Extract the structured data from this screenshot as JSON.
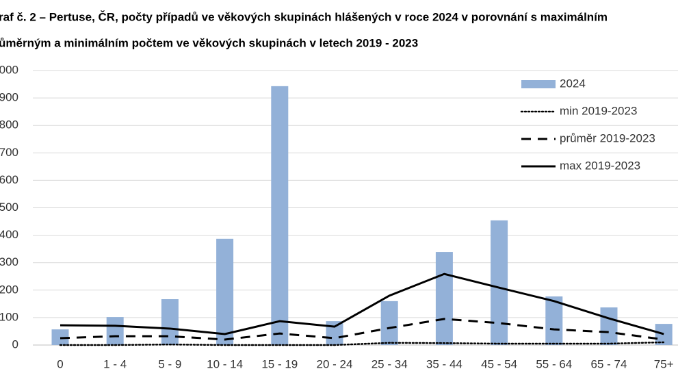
{
  "chart_data": {
    "type": "bar_line",
    "title": "raf č. 2 – Pertuse, ČR, počty případů ve věkových skupinách hlášených v roce 2024 v porovnání s maximálním",
    "subtitle": "ůměrným a minimálním počtem ve věkových skupinách v  letech 2019 - 2023",
    "categories": [
      "0",
      "1 - 4",
      "5 - 9",
      "10 - 14",
      "15 - 19",
      "20 - 24",
      "25 - 34",
      "35 - 44",
      "45 - 54",
      "55 - 64",
      "65 - 74",
      "75+"
    ],
    "series": [
      {
        "name": "2024",
        "kind": "bar",
        "color": "#93b1d8",
        "values": [
          57,
          102,
          167,
          387,
          943,
          87,
          160,
          339,
          454,
          177,
          137,
          77
        ]
      },
      {
        "name": "min 2019-2023",
        "kind": "line",
        "dash": "dotted",
        "color": "#000000",
        "values": [
          0,
          0,
          2,
          0,
          0,
          0,
          8,
          7,
          5,
          5,
          5,
          10
        ]
      },
      {
        "name": "průměr 2019-2023",
        "kind": "line",
        "dash": "dashed",
        "color": "#000000",
        "values": [
          25,
          32,
          32,
          20,
          42,
          25,
          62,
          95,
          80,
          57,
          47,
          20
        ]
      },
      {
        "name": "max 2019-2023",
        "kind": "line",
        "dash": "solid",
        "color": "#000000",
        "values": [
          72,
          70,
          60,
          40,
          87,
          67,
          180,
          259,
          209,
          160,
          97,
          40
        ]
      }
    ],
    "ylim": [
      0,
      1000
    ],
    "yticks": [
      0,
      100,
      200,
      300,
      400,
      500,
      600,
      700,
      800,
      900,
      {
        "value": 1000,
        "label": "000"
      }
    ],
    "grid": true,
    "legend": "top-right"
  }
}
